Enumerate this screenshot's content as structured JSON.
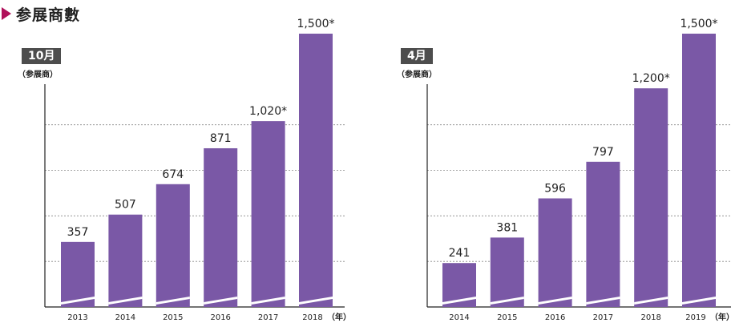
{
  "header": {
    "title": "参展商數"
  },
  "colors": {
    "bar": "#7a58a6",
    "accent": "#b0105a",
    "badge": "#4d4d4d",
    "grid": "#888888"
  },
  "chart_data": [
    {
      "type": "bar",
      "title": "10月",
      "ylabel": "（参展商）",
      "xunit": "（年）",
      "categories": [
        "2013",
        "2014",
        "2015",
        "2016",
        "2017",
        "2018"
      ],
      "values": [
        357,
        507,
        674,
        871,
        1020,
        1500
      ],
      "value_labels": [
        "357",
        "507",
        "674",
        "871",
        "1,020*",
        "1,500*"
      ],
      "ylim": [
        0,
        1500
      ],
      "grid": true
    },
    {
      "type": "bar",
      "title": "4月",
      "ylabel": "（参展商）",
      "xunit": "（年）",
      "categories": [
        "2014",
        "2015",
        "2016",
        "2017",
        "2018",
        "2019"
      ],
      "values": [
        241,
        381,
        596,
        797,
        1200,
        1500
      ],
      "value_labels": [
        "241",
        "381",
        "596",
        "797",
        "1,200*",
        "1,500*"
      ],
      "ylim": [
        0,
        1500
      ],
      "grid": true
    }
  ]
}
